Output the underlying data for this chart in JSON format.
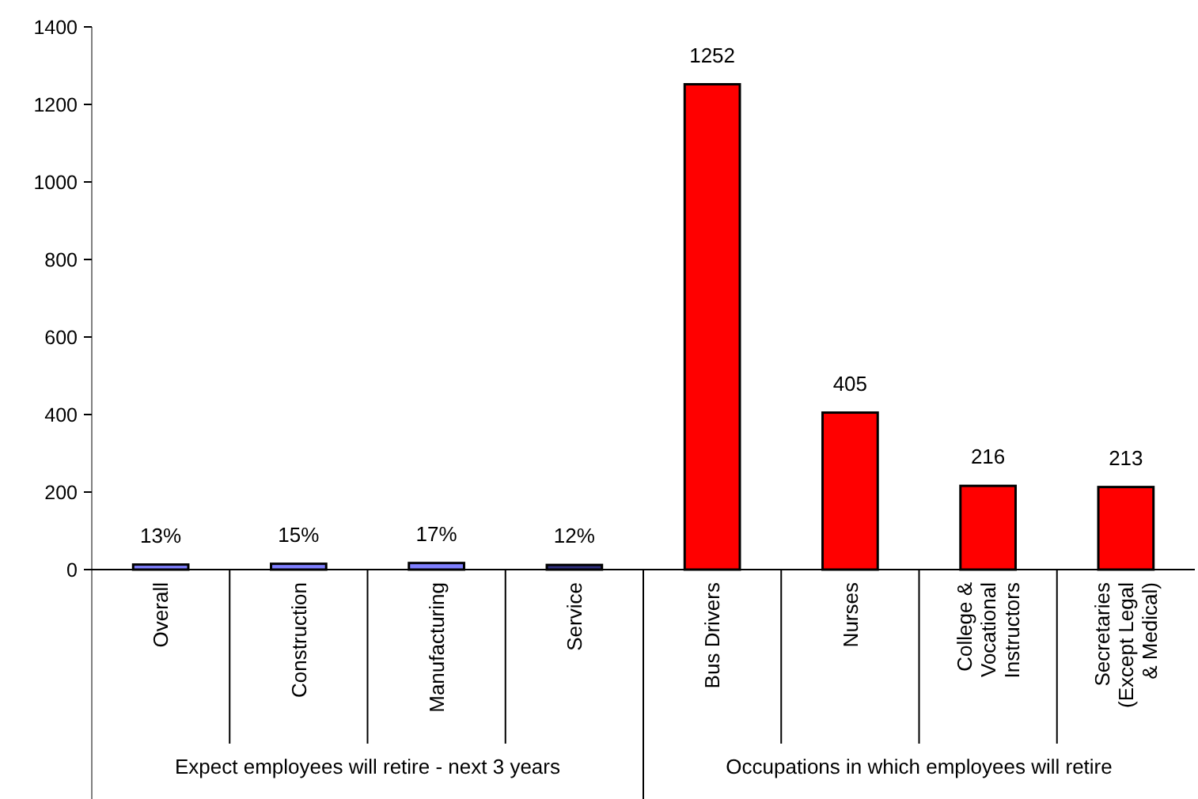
{
  "chart_data": {
    "type": "bar",
    "categories": [
      "Overall",
      "Construction",
      "Manufacturing",
      "Service",
      "Bus Drivers",
      "Nurses",
      "College & Vocational Instructors",
      "Secretaries (Except Legal & Medical)"
    ],
    "values": [
      13,
      15,
      17,
      12,
      1252,
      405,
      216,
      213
    ],
    "colors": [
      "#8080ff",
      "#8080ff",
      "#8080ff",
      "#303080",
      "#ff0000",
      "#ff0000",
      "#ff0000",
      "#ff0000"
    ],
    "value_labels": [
      "13%",
      "15%",
      "17%",
      "12%",
      "1252",
      "405",
      "216",
      "213"
    ],
    "ylim": [
      0,
      1400
    ],
    "yticks": [
      0,
      200,
      400,
      600,
      800,
      1000,
      1200,
      1400
    ],
    "grid": false,
    "annotations": [
      "Expect employees will retire - next 3 years",
      "Occupations in which employees will retire"
    ]
  }
}
